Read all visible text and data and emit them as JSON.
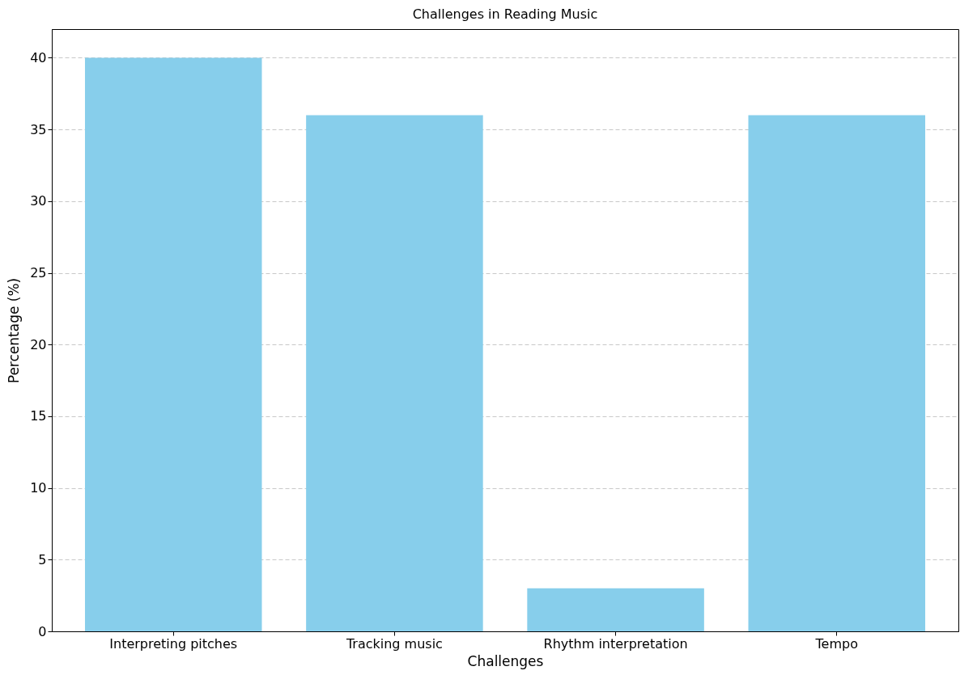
{
  "chart_data": {
    "type": "bar",
    "title": "Challenges in Reading Music",
    "xlabel": "Challenges",
    "ylabel": "Percentage (%)",
    "categories": [
      "Interpreting pitches",
      "Tracking music",
      "Rhythm interpretation",
      "Tempo"
    ],
    "values": [
      40,
      36,
      3,
      36
    ],
    "color": "#87ceeb",
    "ylim": [
      0,
      42
    ],
    "yticks": [
      0,
      5,
      10,
      15,
      20,
      25,
      30,
      35,
      40
    ],
    "grid": "y"
  }
}
